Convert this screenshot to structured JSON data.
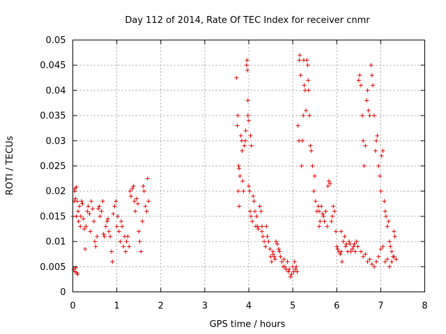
{
  "chart_data": {
    "type": "scatter",
    "title": "Day 112 of 2014, Rate Of TEC Index for receiver cnmr",
    "xlabel": "GPS time / hours",
    "ylabel": "ROTI / TECUs",
    "xlim": [
      0,
      8
    ],
    "ylim": [
      0,
      0.05
    ],
    "xticks": [
      "0",
      "1",
      "2",
      "3",
      "4",
      "5",
      "6",
      "7",
      "8"
    ],
    "yticks": [
      "0",
      "0.005",
      "0.01",
      "0.015",
      "0.02",
      "0.025",
      "0.03",
      "0.035",
      "0.04",
      "0.045",
      "0.05"
    ],
    "grid": true,
    "marker": "+",
    "color": "#e00000",
    "series": [
      {
        "name": "ROTI",
        "points": [
          [
            0.0,
            0.015
          ],
          [
            0.02,
            0.0045
          ],
          [
            0.03,
            0.018
          ],
          [
            0.04,
            0.02
          ],
          [
            0.05,
            0.0205
          ],
          [
            0.05,
            0.004
          ],
          [
            0.06,
            0.0185
          ],
          [
            0.07,
            0.0048
          ],
          [
            0.08,
            0.015
          ],
          [
            0.08,
            0.0208
          ],
          [
            0.09,
            0.0038
          ],
          [
            0.1,
            0.018
          ],
          [
            0.11,
            0.0035
          ],
          [
            0.12,
            0.016
          ],
          [
            0.13,
            0.014
          ],
          [
            0.15,
            0.017
          ],
          [
            0.17,
            0.013
          ],
          [
            0.18,
            0.015
          ],
          [
            0.2,
            0.018
          ],
          [
            0.22,
            0.0175
          ],
          [
            0.24,
            0.0145
          ],
          [
            0.26,
            0.0125
          ],
          [
            0.28,
            0.0085
          ],
          [
            0.3,
            0.013
          ],
          [
            0.33,
            0.016
          ],
          [
            0.35,
            0.017
          ],
          [
            0.38,
            0.0155
          ],
          [
            0.4,
            0.012
          ],
          [
            0.42,
            0.018
          ],
          [
            0.45,
            0.0165
          ],
          [
            0.48,
            0.014
          ],
          [
            0.5,
            0.01
          ],
          [
            0.52,
            0.009
          ],
          [
            0.55,
            0.011
          ],
          [
            0.58,
            0.0165
          ],
          [
            0.6,
            0.017
          ],
          [
            0.62,
            0.015
          ],
          [
            0.65,
            0.016
          ],
          [
            0.68,
            0.018
          ],
          [
            0.7,
            0.0115
          ],
          [
            0.72,
            0.011
          ],
          [
            0.75,
            0.013
          ],
          [
            0.78,
            0.014
          ],
          [
            0.8,
            0.0145
          ],
          [
            0.82,
            0.012
          ],
          [
            0.85,
            0.011
          ],
          [
            0.88,
            0.008
          ],
          [
            0.9,
            0.006
          ],
          [
            0.92,
            0.0155
          ],
          [
            0.95,
            0.017
          ],
          [
            0.98,
            0.018
          ],
          [
            1.0,
            0.013
          ],
          [
            1.02,
            0.015
          ],
          [
            1.05,
            0.012
          ],
          [
            1.08,
            0.01
          ],
          [
            1.1,
            0.014
          ],
          [
            1.12,
            0.013
          ],
          [
            1.15,
            0.009
          ],
          [
            1.18,
            0.011
          ],
          [
            1.2,
            0.008
          ],
          [
            1.22,
            0.01
          ],
          [
            1.25,
            0.011
          ],
          [
            1.28,
            0.009
          ],
          [
            1.3,
            0.02
          ],
          [
            1.32,
            0.019
          ],
          [
            1.35,
            0.0205
          ],
          [
            1.38,
            0.021
          ],
          [
            1.4,
            0.018
          ],
          [
            1.42,
            0.016
          ],
          [
            1.45,
            0.0185
          ],
          [
            1.48,
            0.0175
          ],
          [
            1.5,
            0.012
          ],
          [
            1.52,
            0.01
          ],
          [
            1.55,
            0.008
          ],
          [
            1.58,
            0.014
          ],
          [
            1.6,
            0.021
          ],
          [
            1.62,
            0.02
          ],
          [
            1.65,
            0.017
          ],
          [
            1.68,
            0.016
          ],
          [
            1.7,
            0.0225
          ],
          [
            1.72,
            0.018
          ],
          [
            3.72,
            0.0425
          ],
          [
            3.74,
            0.033
          ],
          [
            3.75,
            0.035
          ],
          [
            3.76,
            0.02
          ],
          [
            3.77,
            0.025
          ],
          [
            3.78,
            0.0245
          ],
          [
            3.78,
            0.017
          ],
          [
            3.8,
            0.023
          ],
          [
            3.82,
            0.031
          ],
          [
            3.84,
            0.03
          ],
          [
            3.85,
            0.028
          ],
          [
            3.86,
            0.022
          ],
          [
            3.88,
            0.02
          ],
          [
            3.9,
            0.029
          ],
          [
            3.92,
            0.03
          ],
          [
            3.93,
            0.032
          ],
          [
            3.95,
            0.045
          ],
          [
            3.96,
            0.046
          ],
          [
            3.97,
            0.044
          ],
          [
            3.98,
            0.038
          ],
          [
            3.98,
            0.035
          ],
          [
            4.0,
            0.034
          ],
          [
            4.0,
            0.021
          ],
          [
            4.02,
            0.02
          ],
          [
            4.03,
            0.016
          ],
          [
            4.04,
            0.031
          ],
          [
            4.05,
            0.015
          ],
          [
            4.06,
            0.029
          ],
          [
            4.08,
            0.014
          ],
          [
            4.1,
            0.019
          ],
          [
            4.12,
            0.018
          ],
          [
            4.14,
            0.016
          ],
          [
            4.16,
            0.013
          ],
          [
            4.18,
            0.015
          ],
          [
            4.2,
            0.013
          ],
          [
            4.22,
            0.0125
          ],
          [
            4.25,
            0.017
          ],
          [
            4.28,
            0.016
          ],
          [
            4.3,
            0.012
          ],
          [
            4.32,
            0.011
          ],
          [
            4.35,
            0.01
          ],
          [
            4.38,
            0.009
          ],
          [
            4.4,
            0.013
          ],
          [
            4.42,
            0.011
          ],
          [
            4.45,
            0.01
          ],
          [
            4.48,
            0.0085
          ],
          [
            4.5,
            0.007
          ],
          [
            4.52,
            0.006
          ],
          [
            4.55,
            0.0075
          ],
          [
            4.58,
            0.007
          ],
          [
            4.6,
            0.0065
          ],
          [
            4.62,
            0.01
          ],
          [
            4.65,
            0.0095
          ],
          [
            4.68,
            0.0085
          ],
          [
            4.7,
            0.008
          ],
          [
            4.72,
            0.007
          ],
          [
            4.75,
            0.006
          ],
          [
            4.78,
            0.005
          ],
          [
            4.8,
            0.0065
          ],
          [
            4.82,
            0.005
          ],
          [
            4.85,
            0.0045
          ],
          [
            4.88,
            0.006
          ],
          [
            4.9,
            0.004
          ],
          [
            4.92,
            0.0045
          ],
          [
            4.95,
            0.003
          ],
          [
            4.97,
            0.0035
          ],
          [
            5.0,
            0.005
          ],
          [
            5.02,
            0.004
          ],
          [
            5.04,
            0.006
          ],
          [
            5.06,
            0.0045
          ],
          [
            5.08,
            0.005
          ],
          [
            5.1,
            0.004
          ],
          [
            5.12,
            0.033
          ],
          [
            5.14,
            0.03
          ],
          [
            5.15,
            0.046
          ],
          [
            5.16,
            0.047
          ],
          [
            5.18,
            0.043
          ],
          [
            5.2,
            0.025
          ],
          [
            5.22,
            0.03
          ],
          [
            5.24,
            0.035
          ],
          [
            5.25,
            0.046
          ],
          [
            5.26,
            0.041
          ],
          [
            5.28,
            0.04
          ],
          [
            5.3,
            0.036
          ],
          [
            5.32,
            0.046
          ],
          [
            5.34,
            0.045
          ],
          [
            5.35,
            0.042
          ],
          [
            5.36,
            0.04
          ],
          [
            5.38,
            0.035
          ],
          [
            5.4,
            0.029
          ],
          [
            5.42,
            0.028
          ],
          [
            5.45,
            0.025
          ],
          [
            5.48,
            0.02
          ],
          [
            5.5,
            0.023
          ],
          [
            5.52,
            0.018
          ],
          [
            5.55,
            0.016
          ],
          [
            5.58,
            0.017
          ],
          [
            5.6,
            0.013
          ],
          [
            5.62,
            0.014
          ],
          [
            5.65,
            0.017
          ],
          [
            5.68,
            0.0155
          ],
          [
            5.7,
            0.015
          ],
          [
            5.72,
            0.014
          ],
          [
            5.75,
            0.016
          ],
          [
            5.78,
            0.013
          ],
          [
            5.8,
            0.021
          ],
          [
            5.82,
            0.022
          ],
          [
            5.85,
            0.0215
          ],
          [
            5.88,
            0.014
          ],
          [
            5.9,
            0.015
          ],
          [
            5.92,
            0.017
          ],
          [
            5.95,
            0.016
          ],
          [
            5.98,
            0.012
          ],
          [
            6.0,
            0.009
          ],
          [
            6.02,
            0.0085
          ],
          [
            6.05,
            0.008
          ],
          [
            6.08,
            0.0075
          ],
          [
            6.1,
            0.008
          ],
          [
            6.12,
            0.006
          ],
          [
            6.15,
            0.01
          ],
          [
            6.18,
            0.011
          ],
          [
            6.2,
            0.009
          ],
          [
            6.22,
            0.0095
          ],
          [
            6.25,
            0.008
          ],
          [
            6.28,
            0.01
          ],
          [
            6.3,
            0.0095
          ],
          [
            6.32,
            0.008
          ],
          [
            6.35,
            0.0085
          ],
          [
            6.38,
            0.009
          ],
          [
            6.4,
            0.0095
          ],
          [
            6.42,
            0.008
          ],
          [
            6.45,
            0.01
          ],
          [
            6.48,
            0.009
          ],
          [
            6.5,
            0.042
          ],
          [
            6.52,
            0.043
          ],
          [
            6.55,
            0.041
          ],
          [
            6.58,
            0.035
          ],
          [
            6.6,
            0.03
          ],
          [
            6.62,
            0.025
          ],
          [
            6.65,
            0.029
          ],
          [
            6.68,
            0.038
          ],
          [
            6.7,
            0.04
          ],
          [
            6.72,
            0.036
          ],
          [
            6.75,
            0.035
          ],
          [
            6.78,
            0.045
          ],
          [
            6.8,
            0.043
          ],
          [
            6.82,
            0.041
          ],
          [
            6.85,
            0.035
          ],
          [
            6.88,
            0.028
          ],
          [
            6.9,
            0.03
          ],
          [
            6.92,
            0.031
          ],
          [
            6.95,
            0.025
          ],
          [
            6.98,
            0.023
          ],
          [
            7.0,
            0.02
          ],
          [
            7.02,
            0.027
          ],
          [
            7.05,
            0.028
          ],
          [
            7.08,
            0.018
          ],
          [
            7.1,
            0.016
          ],
          [
            7.12,
            0.015
          ],
          [
            7.15,
            0.013
          ],
          [
            7.18,
            0.014
          ],
          [
            7.2,
            0.01
          ],
          [
            7.22,
            0.009
          ],
          [
            7.25,
            0.008
          ],
          [
            7.28,
            0.007
          ],
          [
            7.3,
            0.012
          ],
          [
            7.32,
            0.011
          ],
          [
            7.35,
            0.0065
          ],
          [
            6.55,
            0.008
          ],
          [
            6.6,
            0.007
          ],
          [
            6.65,
            0.0075
          ],
          [
            6.7,
            0.006
          ],
          [
            6.75,
            0.0065
          ],
          [
            6.8,
            0.0055
          ],
          [
            6.85,
            0.005
          ],
          [
            6.9,
            0.006
          ],
          [
            6.95,
            0.007
          ],
          [
            7.0,
            0.0085
          ],
          [
            7.05,
            0.009
          ],
          [
            7.1,
            0.006
          ],
          [
            7.15,
            0.0065
          ],
          [
            7.2,
            0.005
          ],
          [
            7.25,
            0.006
          ],
          [
            7.3,
            0.007
          ],
          [
            4.3,
            0.013
          ],
          [
            4.55,
            0.008
          ],
          [
            5.6,
            0.016
          ],
          [
            6.1,
            0.012
          ]
        ]
      }
    ]
  }
}
